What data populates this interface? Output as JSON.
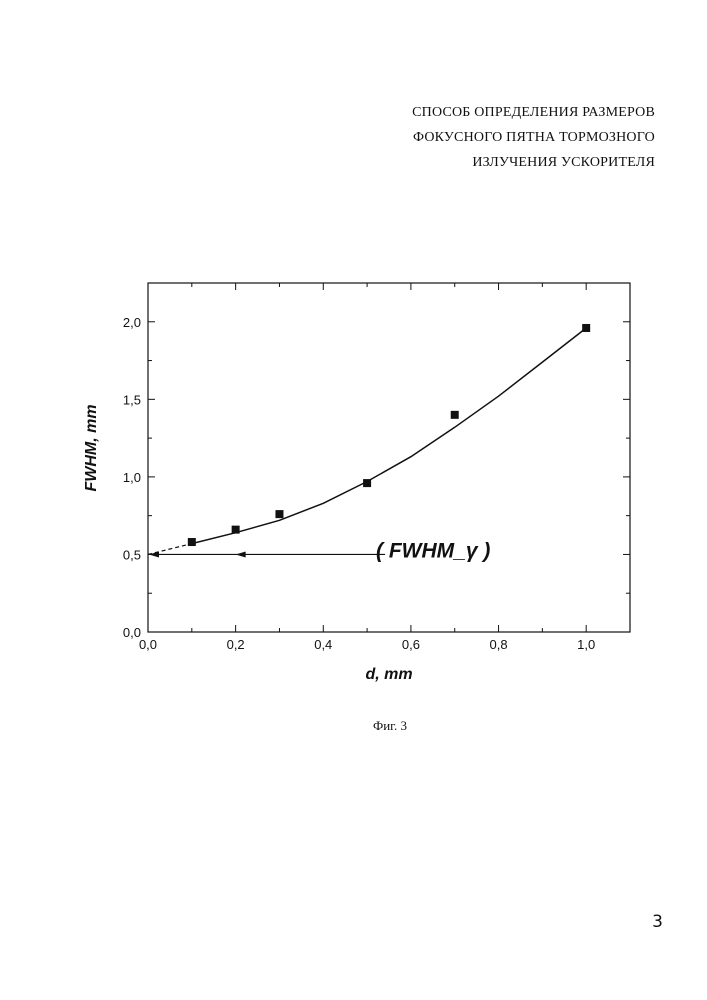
{
  "header": {
    "title_lines": [
      "СПОСОБ ОПРЕДЕЛЕНИЯ РАЗМЕРОВ",
      "ФОКУСНОГО ПЯТНА ТОРМОЗНОГО",
      "ИЗЛУЧЕНИЯ УСКОРИТЕЛЯ"
    ]
  },
  "chart_data": {
    "type": "scatter",
    "xlabel": "d, mm",
    "ylabel": "FWHM, mm",
    "xlim": [
      0.0,
      1.1
    ],
    "ylim": [
      0.0,
      2.25
    ],
    "x_ticks": [
      "0,0",
      "0,2",
      "0,4",
      "0,6",
      "0,8",
      "1,0"
    ],
    "y_ticks": [
      "0,0",
      "0,5",
      "1,0",
      "1,5",
      "2,0"
    ],
    "points": {
      "x": [
        0.1,
        0.2,
        0.3,
        0.5,
        0.7,
        1.0
      ],
      "y": [
        0.58,
        0.66,
        0.76,
        0.96,
        1.4,
        1.96
      ]
    },
    "fit_curve": {
      "x": [
        0.1,
        0.2,
        0.3,
        0.4,
        0.5,
        0.6,
        0.7,
        0.8,
        0.9,
        1.0
      ],
      "y": [
        0.57,
        0.64,
        0.72,
        0.83,
        0.97,
        1.13,
        1.32,
        1.52,
        1.74,
        1.96
      ]
    },
    "extrapolation": {
      "x": [
        0.0,
        0.1
      ],
      "y": [
        0.5,
        0.57
      ]
    },
    "annotation": {
      "text": "( FWHM_γ )",
      "arrow_from": [
        0.5,
        0.5
      ],
      "arrow_to": [
        0.0,
        0.5
      ]
    },
    "grid": false,
    "legend": "none"
  },
  "caption": "Фиг. 3",
  "page_number": "3"
}
